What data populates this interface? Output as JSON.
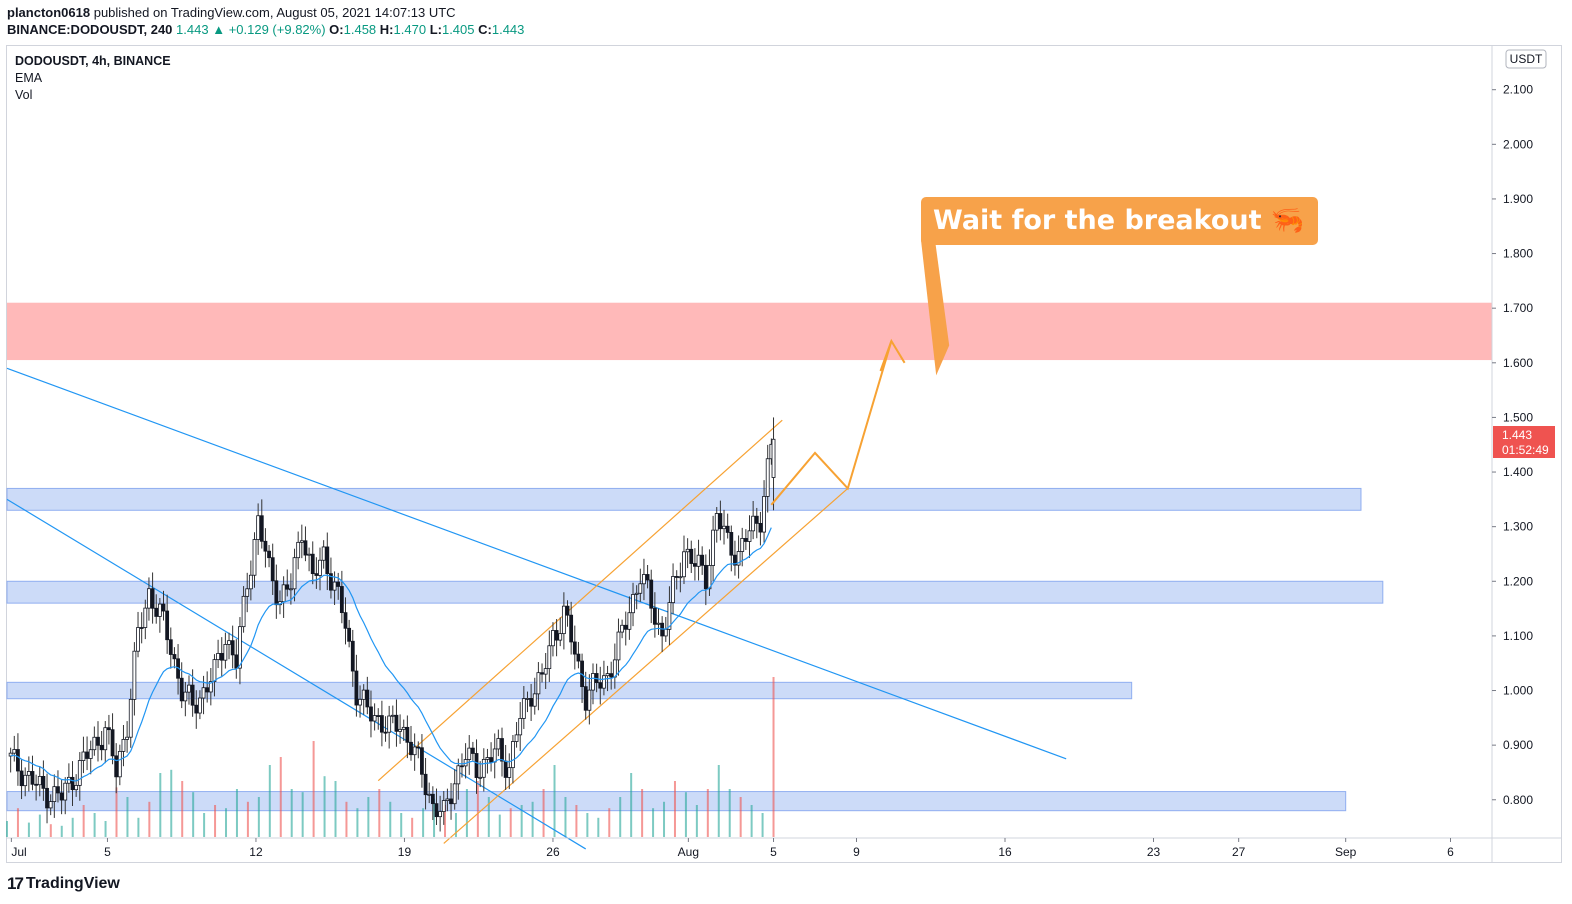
{
  "header": {
    "author": "plancton0618",
    "publish_text": "published on TradingView.com, August 05, 2021 14:07:13 UTC",
    "symbol_line_prefix": "BINANCE:DODOUSDT, 240",
    "last": "1.443",
    "change": "▲ +0.129 (+9.82%)",
    "o_label": "O:",
    "o_value": "1.458",
    "h_label": "H:",
    "h_value": "1.470",
    "l_label": "L:",
    "l_value": "1.405",
    "c_label": "C:",
    "c_value": "1.443"
  },
  "legend": {
    "symbol": "DODOUSDT, 4h, BINANCE",
    "indicator1": "EMA",
    "indicator2": "Vol"
  },
  "currency_badge": "USDT",
  "price_label": {
    "price": "1.443",
    "countdown": "01:52:49"
  },
  "callout_text": "Wait for the breakout 🦐",
  "footer": {
    "brand": "TradingView",
    "logo_mark": "17"
  },
  "colors": {
    "up": "#26a69a",
    "down": "#ef5350",
    "ema": "#2196f3",
    "trendline": "#2196f3",
    "channel": "#f7a233",
    "zone_blue": "#bbcff5",
    "zone_red": "#ffb5b5",
    "callout": "#f7a24a",
    "price_badge": "#ef5350"
  },
  "chart_data": {
    "type": "candlestick",
    "title": "DODOUSDT, 4h, BINANCE",
    "y_axis_ticks": [
      "2.100",
      "2.000",
      "1.900",
      "1.800",
      "1.700",
      "1.600",
      "1.500",
      "1.400",
      "1.300",
      "1.200",
      "1.100",
      "1.000",
      "0.900",
      "0.800"
    ],
    "x_axis_ticks": [
      "Jul",
      "5",
      "12",
      "19",
      "26",
      "Aug",
      "5",
      "9",
      "16",
      "23",
      "27",
      "Sep",
      "6"
    ],
    "ylim": [
      0.73,
      2.18
    ],
    "x_range_days": [
      0,
      68
    ],
    "current_price": 1.443,
    "zones": [
      {
        "name": "resistance",
        "low": 1.605,
        "high": 1.71,
        "x_end_day": 68,
        "color": "red"
      },
      {
        "name": "support-1",
        "low": 1.33,
        "high": 1.37,
        "x_end_day": 62,
        "color": "blue"
      },
      {
        "name": "support-2",
        "low": 1.16,
        "high": 1.2,
        "x_end_day": 63,
        "color": "blue"
      },
      {
        "name": "support-3",
        "low": 0.985,
        "high": 1.015,
        "x_end_day": 51.5,
        "color": "blue"
      },
      {
        "name": "support-4",
        "low": 0.78,
        "high": 0.815,
        "x_end_day": 61.3,
        "color": "blue"
      }
    ],
    "trendlines": [
      {
        "name": "upper-downtrend",
        "start": [
          0,
          1.59
        ],
        "end": [
          48.5,
          0.875
        ]
      },
      {
        "name": "lower-downtrend",
        "start": [
          0,
          1.35
        ],
        "end": [
          26.5,
          0.71
        ]
      }
    ],
    "channel": {
      "upper": {
        "start": [
          17,
          0.835
        ],
        "end": [
          35.5,
          1.495
        ]
      },
      "lower": {
        "start": [
          20,
          0.72
        ],
        "end": [
          38.5,
          1.37
        ]
      }
    },
    "projection_path": [
      [
        35.0,
        1.34
      ],
      [
        37.0,
        1.435
      ],
      [
        38.5,
        1.37
      ],
      [
        40.5,
        1.64
      ]
    ],
    "projection_arrowhead": [
      [
        40.0,
        1.585
      ],
      [
        40.5,
        1.64
      ],
      [
        41.1,
        1.6
      ]
    ],
    "callout_pointer": [
      42.0,
      1.76
    ],
    "price_series": [
      [
        0.0,
        0.88
      ],
      [
        0.5,
        0.86
      ],
      [
        1.0,
        0.84
      ],
      [
        1.5,
        0.82
      ],
      [
        2.0,
        0.81
      ],
      [
        2.5,
        0.805
      ],
      [
        3.0,
        0.84
      ],
      [
        3.5,
        0.87
      ],
      [
        4.0,
        0.9
      ],
      [
        4.5,
        0.93
      ],
      [
        5.0,
        0.85
      ],
      [
        5.5,
        0.94
      ],
      [
        6.0,
        1.1
      ],
      [
        6.5,
        1.18
      ],
      [
        7.0,
        1.14
      ],
      [
        7.5,
        1.08
      ],
      [
        8.0,
        1.0
      ],
      [
        8.5,
        0.97
      ],
      [
        9.0,
        1.0
      ],
      [
        9.5,
        1.03
      ],
      [
        10.0,
        1.1
      ],
      [
        10.5,
        1.05
      ],
      [
        11.0,
        1.2
      ],
      [
        11.5,
        1.31
      ],
      [
        12.0,
        1.22
      ],
      [
        12.5,
        1.17
      ],
      [
        13.0,
        1.19
      ],
      [
        13.5,
        1.3
      ],
      [
        14.0,
        1.2
      ],
      [
        14.5,
        1.25
      ],
      [
        15.0,
        1.19
      ],
      [
        15.5,
        1.12
      ],
      [
        16.0,
        1.0
      ],
      [
        16.5,
        0.96
      ],
      [
        17.0,
        0.95
      ],
      [
        17.5,
        0.93
      ],
      [
        18.0,
        0.94
      ],
      [
        18.5,
        0.9
      ],
      [
        19.0,
        0.85
      ],
      [
        19.5,
        0.79
      ],
      [
        20.0,
        0.77
      ],
      [
        20.5,
        0.84
      ],
      [
        21.0,
        0.88
      ],
      [
        21.5,
        0.86
      ],
      [
        22.0,
        0.87
      ],
      [
        22.5,
        0.89
      ],
      [
        23.0,
        0.86
      ],
      [
        23.5,
        0.95
      ],
      [
        24.0,
        1.0
      ],
      [
        24.5,
        1.02
      ],
      [
        25.0,
        1.1
      ],
      [
        25.5,
        1.14
      ],
      [
        26.0,
        1.07
      ],
      [
        26.5,
        0.99
      ],
      [
        27.0,
        1.01
      ],
      [
        27.5,
        1.03
      ],
      [
        28.0,
        1.08
      ],
      [
        28.5,
        1.15
      ],
      [
        29.0,
        1.21
      ],
      [
        29.5,
        1.16
      ],
      [
        30.0,
        1.1
      ],
      [
        30.5,
        1.18
      ],
      [
        31.0,
        1.26
      ],
      [
        31.5,
        1.23
      ],
      [
        32.0,
        1.21
      ],
      [
        32.5,
        1.32
      ],
      [
        33.0,
        1.27
      ],
      [
        33.5,
        1.25
      ],
      [
        34.0,
        1.29
      ],
      [
        34.5,
        1.32
      ],
      [
        35.0,
        1.445
      ]
    ],
    "volume_max": 1.0,
    "volume_series": [
      0.1,
      0.18,
      0.09,
      0.14,
      0.08,
      0.07,
      0.12,
      0.2,
      0.15,
      0.1,
      0.31,
      0.25,
      0.12,
      0.22,
      0.4,
      0.42,
      0.35,
      0.28,
      0.15,
      0.2,
      0.18,
      0.3,
      0.22,
      0.25,
      0.45,
      0.5,
      0.3,
      0.28,
      0.6,
      0.38,
      0.35,
      0.22,
      0.18,
      0.25,
      0.3,
      0.22,
      0.15,
      0.12,
      0.18,
      0.24,
      0.2,
      0.15,
      0.3,
      0.35,
      0.25,
      0.14,
      0.18,
      0.2,
      0.22,
      0.3,
      0.45,
      0.25,
      0.2,
      0.15,
      0.12,
      0.18,
      0.25,
      0.4,
      0.3,
      0.18,
      0.22,
      0.35,
      0.28,
      0.2,
      0.3,
      0.45,
      0.3,
      0.25,
      0.2,
      0.15,
      1.0
    ]
  }
}
